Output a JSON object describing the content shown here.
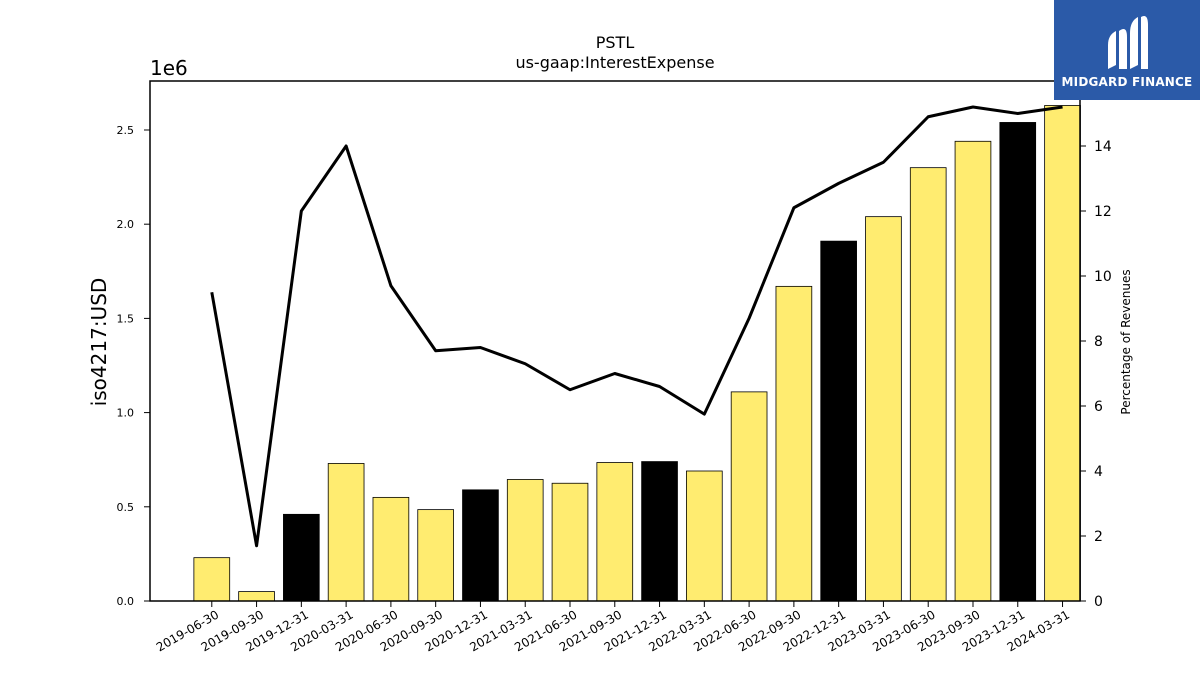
{
  "brand": {
    "name": "MIDGARD FINANCE",
    "bg_color": "#2b5aa8"
  },
  "chart_data": {
    "type": "bar",
    "title": "PSTL",
    "subtitle": "us-gaap:InterestExpense",
    "ylabel": "iso4217:USD",
    "y_multiplier": "1e6",
    "ylim": [
      0,
      2760000
    ],
    "yticks": [
      0,
      500000,
      1000000,
      1500000,
      2000000,
      2500000
    ],
    "ytick_labels": [
      "0.0",
      "0.5",
      "1.0",
      "1.5",
      "2.0",
      "2.5"
    ],
    "y2label": "Percentage of Revenues",
    "y2lim": [
      0,
      16
    ],
    "y2ticks": [
      0,
      2,
      4,
      6,
      8,
      10,
      12,
      14
    ],
    "categories": [
      "2019-06-30",
      "2019-09-30",
      "2019-12-31",
      "2020-03-31",
      "2020-06-30",
      "2020-09-30",
      "2020-12-31",
      "2021-03-31",
      "2021-06-30",
      "2021-09-30",
      "2021-12-31",
      "2022-03-31",
      "2022-06-30",
      "2022-09-30",
      "2022-12-31",
      "2023-03-31",
      "2023-06-30",
      "2023-09-30",
      "2023-12-31",
      "2024-03-31"
    ],
    "values": [
      230000,
      50000,
      460000,
      730000,
      550000,
      485000,
      590000,
      645000,
      625000,
      735000,
      740000,
      690000,
      1110000,
      1670000,
      1910000,
      2040000,
      2300000,
      2440000,
      2540000,
      2630000
    ],
    "bar_colors": [
      "#ffec70",
      "#ffec70",
      "#000000",
      "#ffec70",
      "#ffec70",
      "#ffec70",
      "#000000",
      "#ffec70",
      "#ffec70",
      "#ffec70",
      "#000000",
      "#ffec70",
      "#ffec70",
      "#ffec70",
      "#000000",
      "#ffec70",
      "#ffec70",
      "#ffec70",
      "#000000",
      "#ffec70"
    ],
    "line_values": [
      9.5,
      1.7,
      12.0,
      14.0,
      9.7,
      7.7,
      7.8,
      7.3,
      6.5,
      7.0,
      6.6,
      5.75,
      8.7,
      12.1,
      12.85,
      13.5,
      14.9,
      15.2,
      15.0,
      15.2
    ],
    "grid": false
  }
}
